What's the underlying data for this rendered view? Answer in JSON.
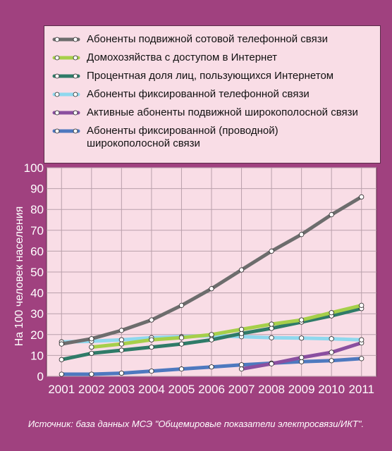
{
  "chart_data": {
    "type": "line",
    "ylabel": "На 100 человек населения",
    "ylim": [
      0,
      100
    ],
    "yticks": [
      0,
      10,
      20,
      30,
      40,
      50,
      60,
      70,
      80,
      90,
      100
    ],
    "categories": [
      "2001",
      "2002",
      "2003",
      "2004",
      "2005",
      "2006",
      "2007",
      "2008",
      "2009",
      "2010",
      "2011"
    ],
    "grid": true,
    "legend_position": "top",
    "series": [
      {
        "name": "Абоненты подвижной сотовой телефонной связи",
        "color": "#6d6d6d",
        "values": [
          15.5,
          18,
          22,
          27,
          34,
          42,
          51,
          60,
          68,
          77.5,
          86
        ]
      },
      {
        "name": "Домохозяйства с доступом в Интернет",
        "color": "#a6cf4a",
        "values": [
          null,
          14,
          15.5,
          17.5,
          18.5,
          20,
          22.5,
          25,
          27,
          30.5,
          34
        ]
      },
      {
        "name": "Процентная доля лиц, пользующихся Интернетом",
        "color": "#2f7b68",
        "values": [
          8,
          11,
          12.5,
          14,
          15.5,
          17.5,
          20.5,
          23,
          26,
          29,
          32.5
        ]
      },
      {
        "name": "Абоненты фиксированной телефонной связи",
        "color": "#8fd8ee",
        "values": [
          16.5,
          16.8,
          17.5,
          18.5,
          19,
          19.5,
          19,
          18.5,
          18.3,
          18,
          17.5
        ]
      },
      {
        "name": "Активные абоненты подвижной широкополосной связи",
        "color": "#8a4fa0",
        "values": [
          null,
          null,
          null,
          null,
          null,
          null,
          3.5,
          6,
          9,
          11.5,
          16
        ]
      },
      {
        "name": "Абоненты фиксированной (проводной)\nширокополосной связи",
        "color": "#4e79bf",
        "values": [
          1,
          1,
          1.5,
          2.5,
          3.5,
          4.5,
          5.5,
          6.3,
          7,
          7.5,
          8.5
        ]
      }
    ]
  },
  "source": "Источник: база данных МСЭ \"Общемировые показатели электросвязи/ИКТ\"."
}
